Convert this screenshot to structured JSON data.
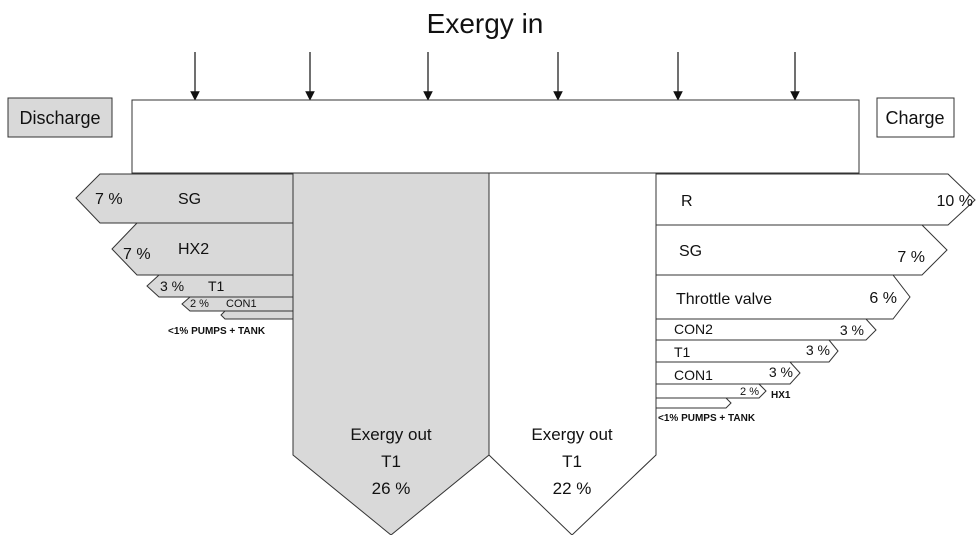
{
  "title": "Exergy in",
  "discharge_label": "Discharge",
  "charge_label": "Charge",
  "discharge_losses": [
    {
      "component": "SG",
      "percent": "7 %"
    },
    {
      "component": "HX2",
      "percent": "7 %"
    },
    {
      "component": "T1",
      "percent": "3 %"
    },
    {
      "component": "CON1",
      "percent": "2 %"
    },
    {
      "component": "<1% PUMPS + TANK",
      "percent": ""
    }
  ],
  "charge_losses": [
    {
      "component": "R",
      "percent": "10 %"
    },
    {
      "component": "SG",
      "percent": "7 %"
    },
    {
      "component": "Throttle valve",
      "percent": "6 %"
    },
    {
      "component": "CON2",
      "percent": "3 %"
    },
    {
      "component": "T1",
      "percent": "3 %"
    },
    {
      "component": "CON1",
      "percent": "3 %"
    },
    {
      "component": "HX1",
      "percent": "2 %"
    },
    {
      "component": "<1% PUMPS + TANK",
      "percent": ""
    }
  ],
  "discharge_output": {
    "line1": "Exergy out",
    "line2": "T1",
    "percent": "26 %"
  },
  "charge_output": {
    "line1": "Exergy out",
    "line2": "T1",
    "percent": "22 %"
  },
  "colors": {
    "discharge_fill": "#d9d9d9",
    "charge_fill": "#ffffff",
    "stroke": "#333333"
  }
}
